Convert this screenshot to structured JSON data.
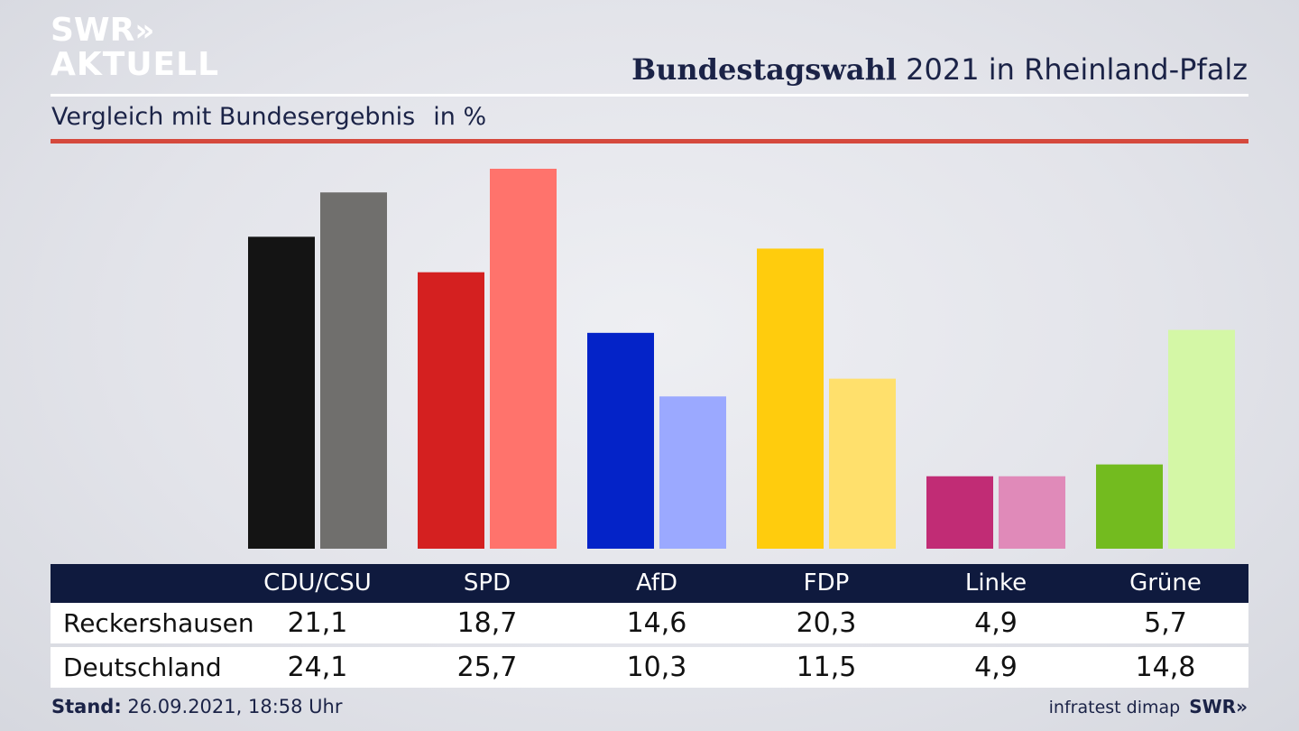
{
  "logo": {
    "line1": "SWR",
    "chevrons": "»",
    "line2": "AKTUELL"
  },
  "header": {
    "title_bold": "Bundestagswahl",
    "title_rest": " 2021 in Rheinland-Pfalz",
    "subtitle": "Vergleich mit Bundesergebnis",
    "unit": "in %"
  },
  "colors": {
    "accent_red": "#d5493d",
    "header_bar": "#0f1a3e"
  },
  "chart_data": {
    "type": "bar",
    "categories": [
      "CDU/CSU",
      "SPD",
      "AfD",
      "FDP",
      "Linke",
      "Grüne"
    ],
    "ylim": [
      0,
      27
    ],
    "grid": false,
    "series": [
      {
        "name": "Reckershausen",
        "values": [
          21.1,
          18.7,
          14.6,
          20.3,
          4.9,
          5.7
        ],
        "colors": [
          "#141414",
          "#d42020",
          "#0423c8",
          "#ffcc0d",
          "#c12c75",
          "#73bb1f"
        ]
      },
      {
        "name": "Deutschland",
        "values": [
          24.1,
          25.7,
          10.3,
          11.5,
          4.9,
          14.8
        ],
        "colors": [
          "#706f6d",
          "#ff736c",
          "#9ba9ff",
          "#ffe06c",
          "#e08ab9",
          "#d4f7a6"
        ]
      }
    ]
  },
  "table": {
    "rows": [
      {
        "label": "Reckershausen",
        "values": [
          "21,1",
          "18,7",
          "14,6",
          "20,3",
          "4,9",
          "5,7"
        ]
      },
      {
        "label": "Deutschland",
        "values": [
          "24,1",
          "25,7",
          "10,3",
          "11,5",
          "4,9",
          "14,8"
        ]
      }
    ]
  },
  "footer": {
    "stand_label": "Stand:",
    "stand_value": " 26.09.2021, 18:58 Uhr",
    "source": "infratest dimap",
    "brand": "SWR»"
  }
}
